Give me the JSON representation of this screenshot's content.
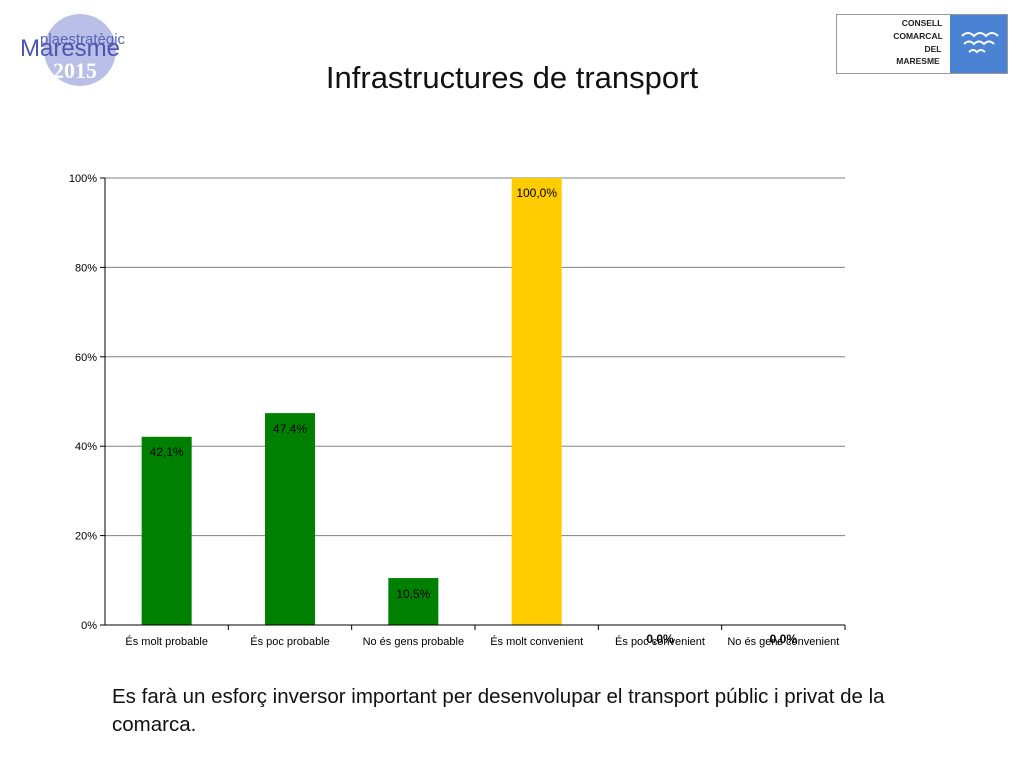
{
  "header": {
    "title": "Infrastructures de transport",
    "logo_left": {
      "line1": "plaestratègic",
      "line2": "Maresme",
      "line3": "2015"
    },
    "logo_right": {
      "lines": [
        "CONSELL",
        "COMARCAL",
        "DEL",
        "MARESME"
      ]
    }
  },
  "chart_data": {
    "type": "bar",
    "categories": [
      "És molt probable",
      "És poc probable",
      "No és gens probable",
      "És molt convenient",
      "És poc convenient",
      "No és gens convenient"
    ],
    "values": [
      42.1,
      47.4,
      10.5,
      100.0,
      0.0,
      0.0
    ],
    "data_labels": [
      "42,1%",
      "47,4%",
      "10,5%",
      "100,0%",
      "0,0%",
      "0,0%"
    ],
    "bar_colors": [
      "#008000",
      "#008000",
      "#008000",
      "#FFCC00",
      "#008000",
      "#008000"
    ],
    "y_ticks": [
      "0%",
      "20%",
      "40%",
      "60%",
      "80%",
      "100%"
    ],
    "ylim": [
      0,
      100
    ],
    "grid": true,
    "title": "",
    "xlabel": "",
    "ylabel": ""
  },
  "caption": "Es farà un esforç inversor important per desenvolupar el transport públic i privat de la comarca."
}
